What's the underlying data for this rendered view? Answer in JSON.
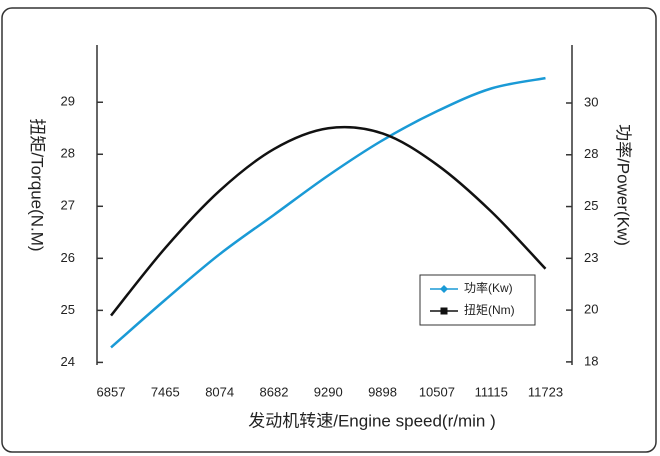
{
  "chart_data": {
    "type": "line",
    "x_label": "发动机转速/Engine speed(r/min )",
    "y_label": "扭矩/Torque(N.M)",
    "y2_label": "功率/Power(Kw)",
    "x": [
      6857,
      7465,
      8074,
      8682,
      9290,
      9898,
      10507,
      11115,
      11723
    ],
    "series": [
      {
        "name": "功率(Kw)",
        "color": "#1a9ad6",
        "axis": "y2",
        "values": [
          18.2,
          20.5,
          22.7,
          24.6,
          26.5,
          28.2,
          29.6,
          30.7,
          31.2
        ]
      },
      {
        "name": "扭矩(Nm)",
        "color": "#111111",
        "values": [
          24.9,
          26.2,
          27.3,
          28.1,
          28.5,
          28.4,
          27.8,
          26.9,
          25.8
        ]
      }
    ],
    "xlim": [
      6700,
      12020
    ],
    "xticks": [
      6857,
      7465,
      8074,
      8682,
      9290,
      9898,
      10507,
      11115,
      11723
    ],
    "ylim": [
      23.95,
      30.1
    ],
    "yticks": [
      24,
      25,
      26,
      27,
      28,
      29
    ],
    "y2lim": [
      17.35,
      32.8
    ],
    "y2ticks": [
      {
        "value": 17.5,
        "label": "18"
      },
      20,
      {
        "value": 22.5,
        "label": "23"
      },
      25,
      {
        "value": 27.5,
        "label": "28"
      },
      30
    ],
    "legend": "lower right"
  }
}
